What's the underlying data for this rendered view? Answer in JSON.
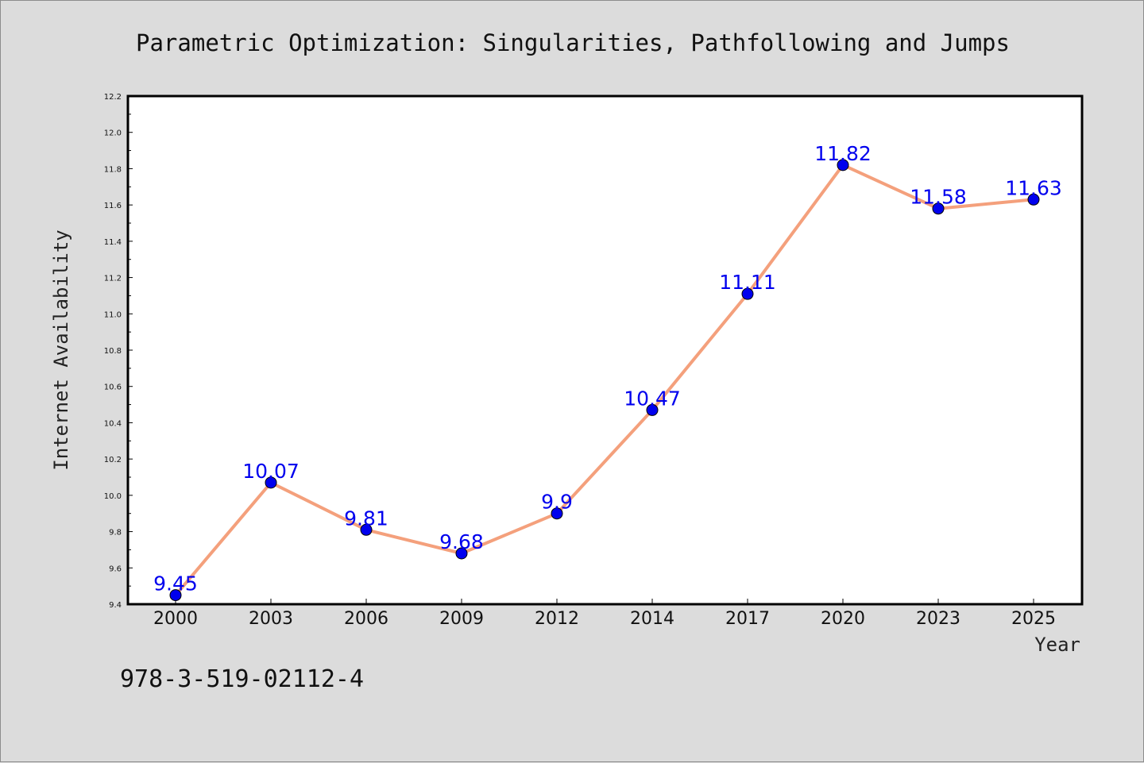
{
  "chart_data": {
    "type": "line",
    "title": "Parametric Optimization: Singularities, Pathfollowing and Jumps",
    "xlabel": "Year",
    "ylabel": "Internet Availability",
    "categories": [
      "2000",
      "2003",
      "2006",
      "2009",
      "2012",
      "2014",
      "2017",
      "2020",
      "2023",
      "2025"
    ],
    "values": [
      9.45,
      10.07,
      9.81,
      9.68,
      9.9,
      10.47,
      11.11,
      11.82,
      11.58,
      11.63
    ],
    "data_labels": [
      "9.45",
      "10.07",
      "9.81",
      "9.68",
      "9.9",
      "10.47",
      "11.11",
      "11.82",
      "11.58",
      "11.63"
    ],
    "ylim": [
      9.4,
      12.2
    ],
    "yticks": [
      "9.4",
      "9.6",
      "9.8",
      "10.0",
      "10.2",
      "10.4",
      "10.6",
      "10.8",
      "11.0",
      "11.2",
      "11.4",
      "11.6",
      "11.8",
      "12.0",
      "12.2"
    ],
    "grid": false,
    "legend": "none",
    "line_color": "#f4a07c",
    "marker_color": "#0000ee",
    "label_color": "#0000ee"
  },
  "footnote": "978-3-519-02112-4"
}
